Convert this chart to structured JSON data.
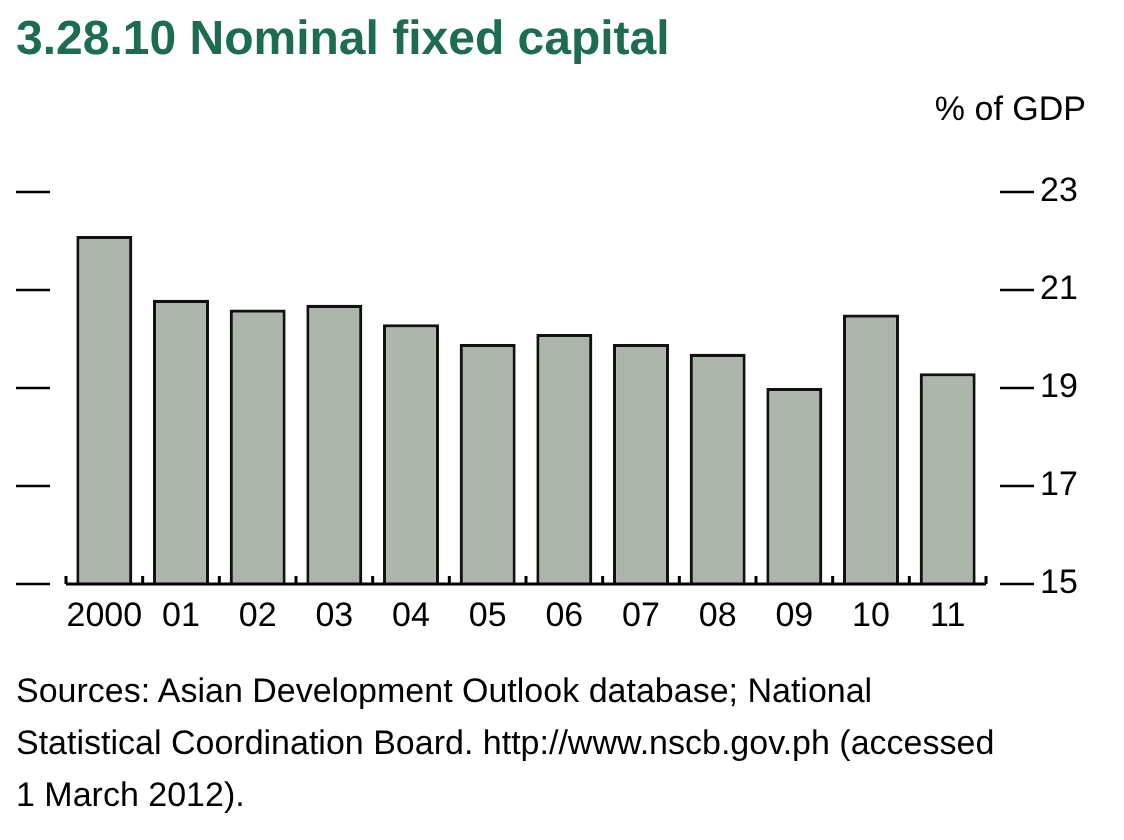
{
  "chart_data": {
    "type": "bar",
    "title": "3.28.10 Nominal fixed capital",
    "ylabel": "% of GDP",
    "categories": [
      "2000",
      "01",
      "02",
      "03",
      "04",
      "05",
      "06",
      "07",
      "08",
      "09",
      "10",
      "11"
    ],
    "values": [
      22.1,
      20.8,
      20.6,
      20.7,
      20.3,
      19.9,
      20.1,
      19.9,
      19.7,
      19.0,
      20.5,
      19.3
    ],
    "color": "#abb5aa",
    "ylim": [
      15,
      23
    ],
    "yticks": [
      15,
      17,
      19,
      21,
      23
    ],
    "annotations": [
      "Sources: Asian Development Outlook database; National Statistical Coordination Board. http://www.nscb.gov.ph (accessed 1 March 2012)."
    ]
  }
}
